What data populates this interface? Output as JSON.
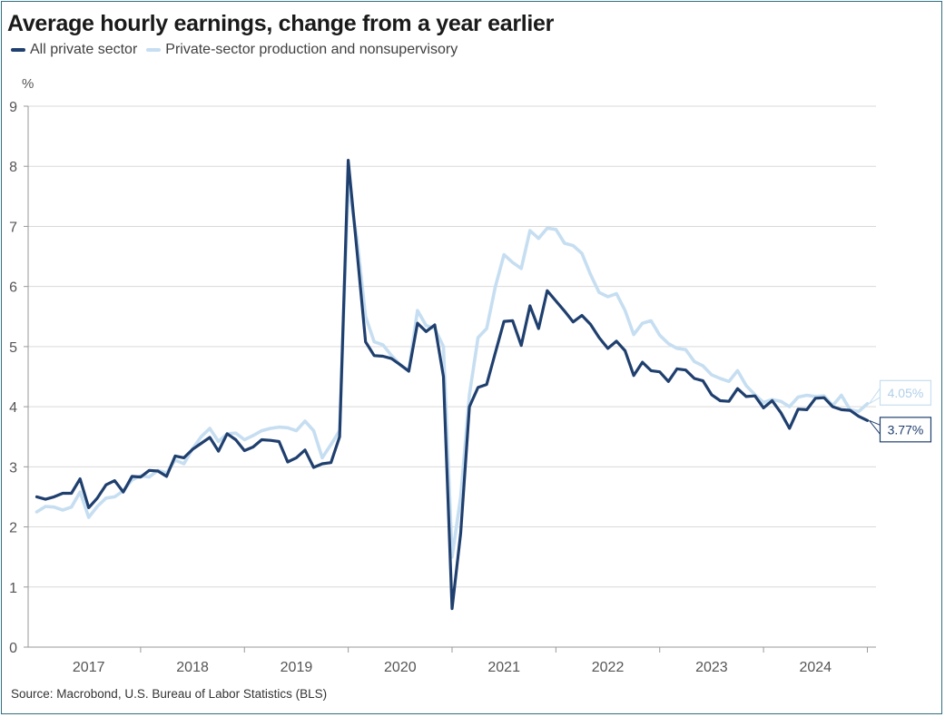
{
  "chart_data": {
    "type": "line",
    "title": "Average hourly earnings, change from a year earlier",
    "ylabel": "%",
    "source": "Source: Macrobond, U.S. Bureau of Labor Statistics (BLS)",
    "ylim": [
      0,
      9
    ],
    "yticks": [
      "0",
      "1",
      "2",
      "3",
      "4",
      "5",
      "6",
      "7",
      "8",
      "9"
    ],
    "xlim": [
      "2016-12",
      "2025-02"
    ],
    "year_labels": [
      "2017",
      "2018",
      "2019",
      "2020",
      "2021",
      "2022",
      "2023",
      "2024"
    ],
    "grid": "horizontal",
    "legend_position": "top-left",
    "x": [
      "2017-01",
      "2017-02",
      "2017-03",
      "2017-04",
      "2017-05",
      "2017-06",
      "2017-07",
      "2017-08",
      "2017-09",
      "2017-10",
      "2017-11",
      "2017-12",
      "2018-01",
      "2018-02",
      "2018-03",
      "2018-04",
      "2018-05",
      "2018-06",
      "2018-07",
      "2018-08",
      "2018-09",
      "2018-10",
      "2018-11",
      "2018-12",
      "2019-01",
      "2019-02",
      "2019-03",
      "2019-04",
      "2019-05",
      "2019-06",
      "2019-07",
      "2019-08",
      "2019-09",
      "2019-10",
      "2019-11",
      "2019-12",
      "2020-01",
      "2020-02",
      "2020-03",
      "2020-04",
      "2020-05",
      "2020-06",
      "2020-07",
      "2020-08",
      "2020-09",
      "2020-10",
      "2020-11",
      "2020-12",
      "2021-01",
      "2021-02",
      "2021-03",
      "2021-04",
      "2021-05",
      "2021-06",
      "2021-07",
      "2021-08",
      "2021-09",
      "2021-10",
      "2021-11",
      "2021-12",
      "2022-01",
      "2022-02",
      "2022-03",
      "2022-04",
      "2022-05",
      "2022-06",
      "2022-07",
      "2022-08",
      "2022-09",
      "2022-10",
      "2022-11",
      "2022-12",
      "2023-01",
      "2023-02",
      "2023-03",
      "2023-04",
      "2023-05",
      "2023-06",
      "2023-07",
      "2023-08",
      "2023-09",
      "2023-10",
      "2023-11",
      "2023-12",
      "2024-01",
      "2024-02",
      "2024-03",
      "2024-04",
      "2024-05",
      "2024-06",
      "2024-07",
      "2024-08",
      "2024-09",
      "2024-10",
      "2024-11",
      "2024-12",
      "2025-01"
    ],
    "series": [
      {
        "name": "All private sector",
        "color": "#1f3f6e",
        "end_label": "3.77%",
        "values": [
          2.5,
          2.46,
          2.5,
          2.56,
          2.56,
          2.8,
          2.32,
          2.48,
          2.7,
          2.77,
          2.58,
          2.84,
          2.83,
          2.94,
          2.93,
          2.84,
          3.18,
          3.15,
          3.29,
          3.39,
          3.49,
          3.26,
          3.55,
          3.45,
          3.27,
          3.33,
          3.45,
          3.44,
          3.42,
          3.08,
          3.15,
          3.28,
          2.99,
          3.05,
          3.07,
          3.5,
          8.1,
          6.6,
          5.08,
          4.85,
          4.84,
          4.8,
          4.7,
          4.59,
          5.39,
          5.25,
          5.36,
          4.5,
          0.64,
          1.9,
          4.0,
          4.32,
          4.37,
          4.9,
          5.42,
          5.43,
          5.02,
          5.68,
          5.3,
          5.93,
          5.76,
          5.59,
          5.41,
          5.52,
          5.37,
          5.15,
          4.97,
          5.09,
          4.93,
          4.52,
          4.74,
          4.6,
          4.58,
          4.42,
          4.63,
          4.61,
          4.47,
          4.43,
          4.2,
          4.1,
          4.09,
          4.3,
          4.17,
          4.18,
          3.98,
          4.1,
          3.9,
          3.64,
          3.96,
          3.95,
          4.14,
          4.15,
          4.0,
          3.95,
          3.94,
          3.84,
          3.77
        ]
      },
      {
        "name": "Private-sector production and nonsupervisory",
        "color": "#c6def1",
        "end_label": "4.05%",
        "values": [
          2.25,
          2.34,
          2.33,
          2.28,
          2.33,
          2.58,
          2.16,
          2.34,
          2.48,
          2.5,
          2.6,
          2.78,
          2.85,
          2.83,
          2.94,
          2.9,
          3.11,
          3.05,
          3.3,
          3.5,
          3.64,
          3.42,
          3.55,
          3.56,
          3.45,
          3.52,
          3.6,
          3.64,
          3.66,
          3.65,
          3.6,
          3.76,
          3.6,
          3.15,
          3.37,
          3.6,
          7.7,
          6.8,
          5.5,
          5.08,
          5.03,
          4.85,
          4.7,
          4.6,
          5.6,
          5.35,
          5.3,
          5.0,
          1.5,
          2.5,
          4.2,
          5.15,
          5.3,
          6.0,
          6.53,
          6.4,
          6.3,
          6.93,
          6.8,
          6.97,
          6.95,
          6.72,
          6.68,
          6.55,
          6.2,
          5.9,
          5.83,
          5.88,
          5.6,
          5.2,
          5.39,
          5.43,
          5.19,
          5.05,
          4.97,
          4.95,
          4.75,
          4.68,
          4.53,
          4.47,
          4.42,
          4.6,
          4.35,
          4.2,
          4.07,
          4.12,
          4.09,
          4.0,
          4.16,
          4.19,
          4.17,
          4.18,
          4.02,
          4.19,
          3.95,
          3.92,
          4.05
        ]
      }
    ]
  }
}
